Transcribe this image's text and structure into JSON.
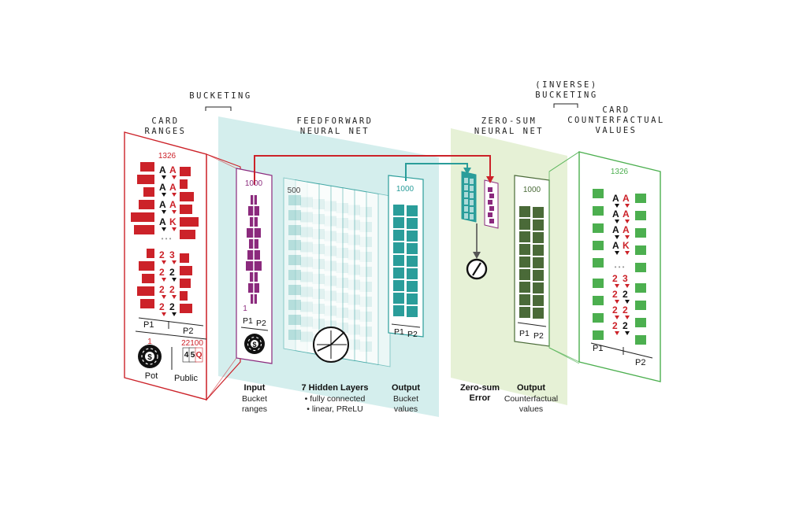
{
  "headers": {
    "card_ranges": [
      "CARD",
      "RANGES"
    ],
    "bucketing": "BUCKETING",
    "feedforward": [
      "FEEDFORWARD",
      "NEURAL NET"
    ],
    "zero_sum": [
      "ZERO-SUM",
      "NEURAL NET"
    ],
    "inverse_bucketing": [
      "(INVERSE)",
      "BUCKETING"
    ],
    "card_cf_values": [
      "CARD",
      "COUNTERFACTUAL",
      "VALUES"
    ]
  },
  "ranges_panel": {
    "count": "1326",
    "p1": "P1",
    "p2": "P2",
    "pot_number": "1",
    "public_number": "22100",
    "pot_label": "Pot",
    "public_label": "Public",
    "chip_symbol": "$",
    "ellipsis": "• • •",
    "public_cards": [
      "4",
      "5",
      "Q"
    ],
    "card_pairs": [
      [
        "A",
        "A"
      ],
      [
        "A",
        "A"
      ],
      [
        "A",
        "A"
      ],
      [
        "A",
        "K"
      ],
      [
        "2",
        "3"
      ],
      [
        "2",
        "2"
      ],
      [
        "2",
        "2"
      ],
      [
        "2",
        "2"
      ]
    ]
  },
  "input_panel": {
    "count_top": "1000",
    "count_bottom": "1",
    "p1": "P1",
    "p2": "P2",
    "caption_bold": "Input",
    "caption": [
      "Bucket",
      "ranges"
    ]
  },
  "hidden_panel": {
    "count": "500",
    "caption_bold": "7 Hidden Layers",
    "caption": [
      "• fully connected",
      "• linear, PReLU"
    ]
  },
  "output_panel": {
    "count": "1000",
    "p1": "P1",
    "p2": "P2",
    "caption_bold": "Output",
    "caption": [
      "Bucket",
      "values"
    ]
  },
  "zero_sum_panel": {
    "caption_bold": [
      "Zero-sum",
      "Error"
    ]
  },
  "cf_output_panel": {
    "count": "1000",
    "p1": "P1",
    "p2": "P2",
    "caption_bold": "Output",
    "caption": [
      "Counterfactual",
      "values"
    ]
  },
  "cf_panel": {
    "count": "1326",
    "p1": "P1",
    "p2": "P2",
    "ellipsis": "• • •",
    "card_pairs": [
      [
        "A",
        "A"
      ],
      [
        "A",
        "A"
      ],
      [
        "A",
        "A"
      ],
      [
        "A",
        "K"
      ],
      [
        "2",
        "3"
      ],
      [
        "2",
        "2"
      ],
      [
        "2",
        "2"
      ],
      [
        "2",
        "2"
      ]
    ]
  },
  "colors": {
    "red": "#cc2229",
    "purple": "#8b2a7d",
    "teal": "#2a9d9a",
    "teal_plane": "#cdebea",
    "green": "#4caf4f",
    "green_plane": "#e3efd2",
    "dark_green": "#4a6a38",
    "arrow_gray": "#555555"
  }
}
